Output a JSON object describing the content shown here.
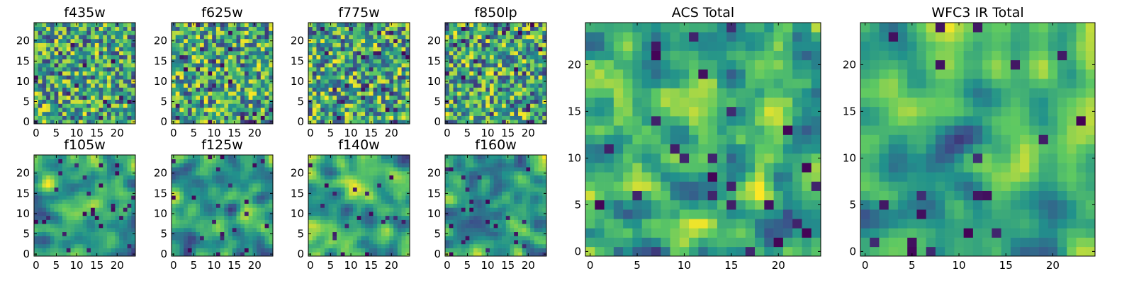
{
  "figure": {
    "colormap": "viridis",
    "colormap_stops": [
      "#440154",
      "#3b528b",
      "#21918c",
      "#5ec962",
      "#fde725"
    ]
  },
  "chart_data": [
    {
      "type": "heatmap",
      "title": "f435w",
      "shape": [
        25,
        25
      ],
      "xlim": [
        -0.5,
        24.5
      ],
      "ylim": [
        -0.5,
        24.5
      ],
      "xticks": [
        0,
        5,
        10,
        15,
        20
      ],
      "yticks": [
        0,
        5,
        10,
        15,
        20
      ],
      "value_range": [
        0,
        1
      ],
      "seed": 11,
      "texture": "noisy"
    },
    {
      "type": "heatmap",
      "title": "f625w",
      "shape": [
        25,
        25
      ],
      "xlim": [
        -0.5,
        24.5
      ],
      "ylim": [
        -0.5,
        24.5
      ],
      "xticks": [
        0,
        5,
        10,
        15,
        20
      ],
      "yticks": [
        0,
        5,
        10,
        15,
        20
      ],
      "value_range": [
        0,
        1
      ],
      "seed": 23,
      "texture": "noisy"
    },
    {
      "type": "heatmap",
      "title": "f775w",
      "shape": [
        25,
        25
      ],
      "xlim": [
        -0.5,
        24.5
      ],
      "ylim": [
        -0.5,
        24.5
      ],
      "xticks": [
        0,
        5,
        10,
        15,
        20
      ],
      "yticks": [
        0,
        5,
        10,
        15,
        20
      ],
      "value_range": [
        0,
        1
      ],
      "seed": 37,
      "texture": "noisy"
    },
    {
      "type": "heatmap",
      "title": "f850lp",
      "shape": [
        25,
        25
      ],
      "xlim": [
        -0.5,
        24.5
      ],
      "ylim": [
        -0.5,
        24.5
      ],
      "xticks": [
        0,
        5,
        10,
        15,
        20
      ],
      "yticks": [
        0,
        5,
        10,
        15,
        20
      ],
      "value_range": [
        0,
        1
      ],
      "seed": 41,
      "texture": "noisy"
    },
    {
      "type": "heatmap",
      "title": "f105w",
      "shape": [
        25,
        25
      ],
      "xlim": [
        -0.5,
        24.5
      ],
      "ylim": [
        -0.5,
        24.5
      ],
      "xticks": [
        0,
        5,
        10,
        15,
        20
      ],
      "yticks": [
        0,
        5,
        10,
        15,
        20
      ],
      "value_range": [
        0,
        1
      ],
      "seed": 53,
      "texture": "smooth"
    },
    {
      "type": "heatmap",
      "title": "f125w",
      "shape": [
        25,
        25
      ],
      "xlim": [
        -0.5,
        24.5
      ],
      "ylim": [
        -0.5,
        24.5
      ],
      "xticks": [
        0,
        5,
        10,
        15,
        20
      ],
      "yticks": [
        0,
        5,
        10,
        15,
        20
      ],
      "value_range": [
        0,
        1
      ],
      "seed": 67,
      "texture": "smooth"
    },
    {
      "type": "heatmap",
      "title": "f140w",
      "shape": [
        25,
        25
      ],
      "xlim": [
        -0.5,
        24.5
      ],
      "ylim": [
        -0.5,
        24.5
      ],
      "xticks": [
        0,
        5,
        10,
        15,
        20
      ],
      "yticks": [
        0,
        5,
        10,
        15,
        20
      ],
      "value_range": [
        0,
        1
      ],
      "seed": 79,
      "texture": "smooth"
    },
    {
      "type": "heatmap",
      "title": "f160w",
      "shape": [
        25,
        25
      ],
      "xlim": [
        -0.5,
        24.5
      ],
      "ylim": [
        -0.5,
        24.5
      ],
      "xticks": [
        0,
        5,
        10,
        15,
        20
      ],
      "yticks": [
        0,
        5,
        10,
        15,
        20
      ],
      "value_range": [
        0,
        1
      ],
      "seed": 83,
      "texture": "smooth"
    },
    {
      "type": "heatmap",
      "title": "ACS Total",
      "shape": [
        25,
        25
      ],
      "xlim": [
        -0.5,
        24.5
      ],
      "ylim": [
        -0.5,
        24.5
      ],
      "xticks": [
        0,
        5,
        10,
        15,
        20
      ],
      "yticks": [
        0,
        5,
        10,
        15,
        20
      ],
      "value_range": [
        0,
        1
      ],
      "seed": 97,
      "texture": "moderate"
    },
    {
      "type": "heatmap",
      "title": "WFC3 IR Total",
      "shape": [
        25,
        25
      ],
      "xlim": [
        -0.5,
        24.5
      ],
      "ylim": [
        -0.5,
        24.5
      ],
      "xticks": [
        0,
        5,
        10,
        15,
        20
      ],
      "yticks": [
        0,
        5,
        10,
        15,
        20
      ],
      "value_range": [
        0,
        1
      ],
      "seed": 101,
      "texture": "smooth"
    }
  ]
}
